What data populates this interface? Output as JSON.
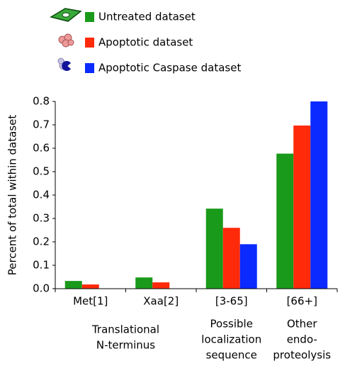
{
  "chart_data": {
    "type": "bar",
    "y_label": "Percent of total within dataset",
    "categories": [
      "Met[1]",
      "Xaa[2]",
      "[3-65]",
      "[66+]"
    ],
    "groups": [
      {
        "lines": [
          "Translational",
          "N-terminus"
        ],
        "span": [
          0,
          1
        ]
      },
      {
        "lines": [
          "Possible",
          "localization",
          "sequence"
        ],
        "span": [
          2,
          2
        ]
      },
      {
        "lines": [
          "Other",
          "endo-",
          "proteolysis"
        ],
        "span": [
          3,
          3
        ]
      }
    ],
    "series": [
      {
        "name": "Untreated dataset",
        "color": "#1a9a1a",
        "values": [
          0.033,
          0.048,
          0.342,
          0.577
        ]
      },
      {
        "name": "Apoptotic dataset",
        "color": "#ff2a0a",
        "values": [
          0.018,
          0.027,
          0.26,
          0.697
        ]
      },
      {
        "name": "Apoptotic Caspase dataset",
        "color": "#0a2aff",
        "values": [
          null,
          null,
          0.19,
          0.8
        ]
      }
    ],
    "ylim": [
      0,
      0.8
    ],
    "yticks": [
      {
        "value": 0,
        "label": "0.0"
      },
      0.1,
      0.2,
      0.3,
      0.4,
      0.5,
      0.6,
      0.7,
      0.8
    ]
  }
}
